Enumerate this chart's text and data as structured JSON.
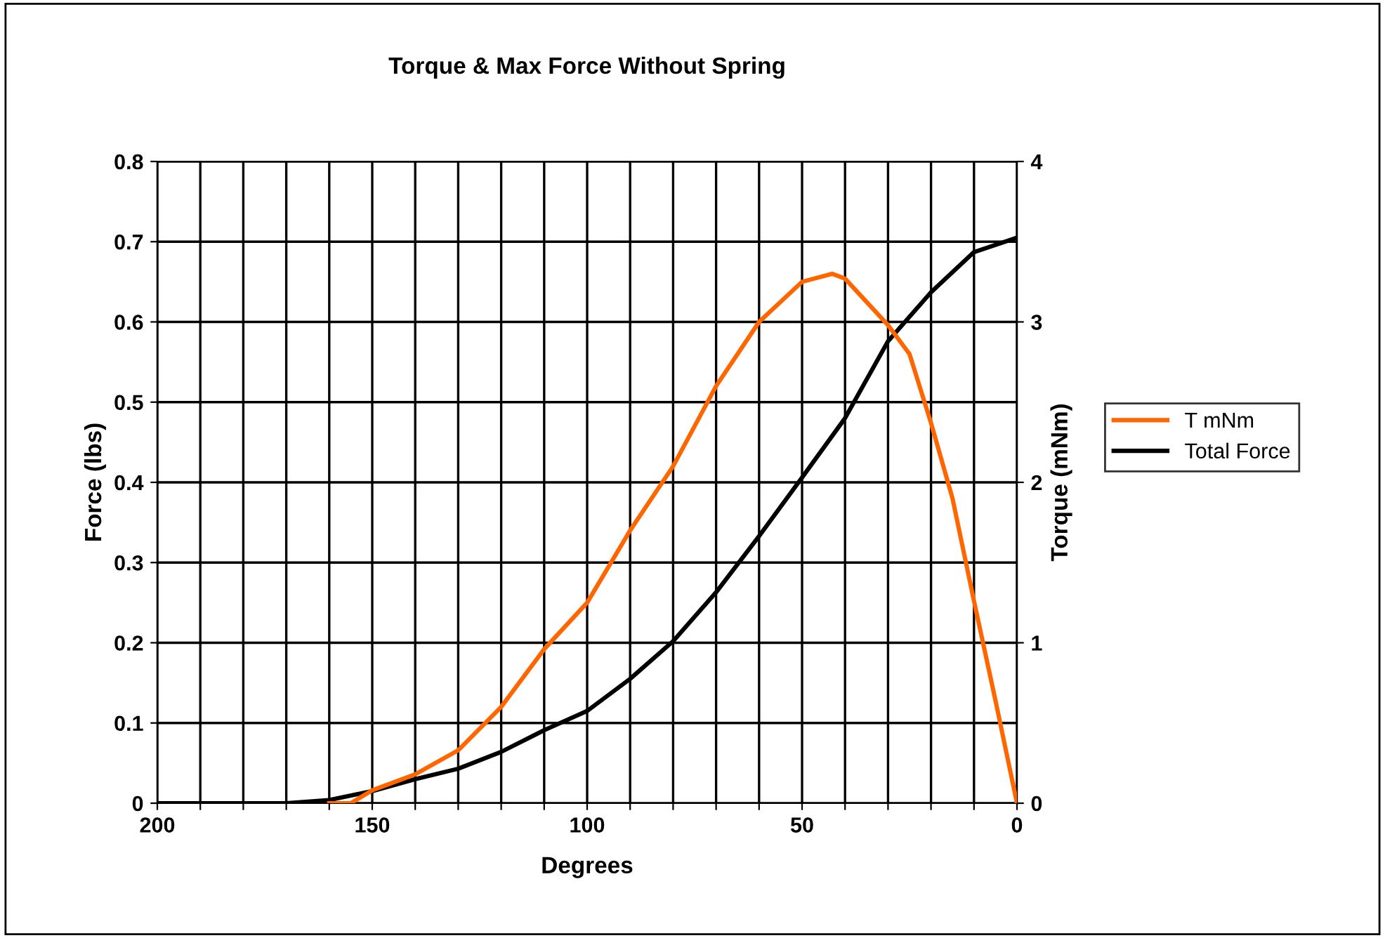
{
  "chart_data": {
    "type": "line",
    "title": "Torque & Max Force Without Spring",
    "xlabel": "Degrees",
    "ylabel": "Force (lbs)",
    "y2label": "Torque (mNm)",
    "xlim": [
      200,
      0
    ],
    "xticks": [
      200,
      {
        "value": 190,
        "label": null
      },
      {
        "value": 180,
        "label": null
      },
      {
        "value": 170,
        "label": null
      },
      {
        "value": 160,
        "label": null
      },
      150,
      {
        "value": 140,
        "label": null
      },
      {
        "value": 130,
        "label": null
      },
      {
        "value": 120,
        "label": null
      },
      {
        "value": 110,
        "label": null
      },
      100,
      {
        "value": 90,
        "label": null
      },
      {
        "value": 80,
        "label": null
      },
      {
        "value": 70,
        "label": null
      },
      {
        "value": 60,
        "label": null
      },
      50,
      {
        "value": 40,
        "label": null
      },
      {
        "value": 30,
        "label": null
      },
      {
        "value": 20,
        "label": null
      },
      {
        "value": 10,
        "label": null
      },
      0
    ],
    "ylim": [
      0,
      0.8
    ],
    "yticks": [
      0,
      0.1,
      0.2,
      0.3,
      0.4,
      0.5,
      0.6,
      0.7,
      0.8
    ],
    "y2lim": [
      0,
      4
    ],
    "y2ticks": [
      0,
      1,
      2,
      3,
      4
    ],
    "grid": true,
    "legend": "right",
    "line_style": "solid",
    "marker": "none",
    "series": [
      {
        "name": "T mNm",
        "color": "#ff6600",
        "axis": "y2",
        "x": [
          160,
          155,
          150,
          140,
          130,
          120,
          110,
          100,
          90,
          80,
          70,
          60,
          50,
          43,
          40,
          30,
          25,
          20,
          15,
          10,
          5,
          0
        ],
        "values": [
          0,
          0,
          0.08,
          0.18,
          0.33,
          0.6,
          0.96,
          1.25,
          1.7,
          2.1,
          2.6,
          3.0,
          3.25,
          3.3,
          3.27,
          2.98,
          2.8,
          2.37,
          1.9,
          1.26,
          0.64,
          0
        ]
      },
      {
        "name": "Total Force",
        "color": "#000000",
        "x": [
          200,
          170,
          160,
          150,
          140,
          130,
          120,
          110,
          100,
          90,
          80,
          70,
          60,
          50,
          40,
          30,
          20,
          10,
          0
        ],
        "values": [
          0,
          0,
          0.004,
          0.015,
          0.03,
          0.043,
          0.064,
          0.091,
          0.115,
          0.155,
          0.202,
          0.263,
          0.333,
          0.406,
          0.48,
          0.576,
          0.637,
          0.687,
          0.705
        ]
      }
    ]
  }
}
